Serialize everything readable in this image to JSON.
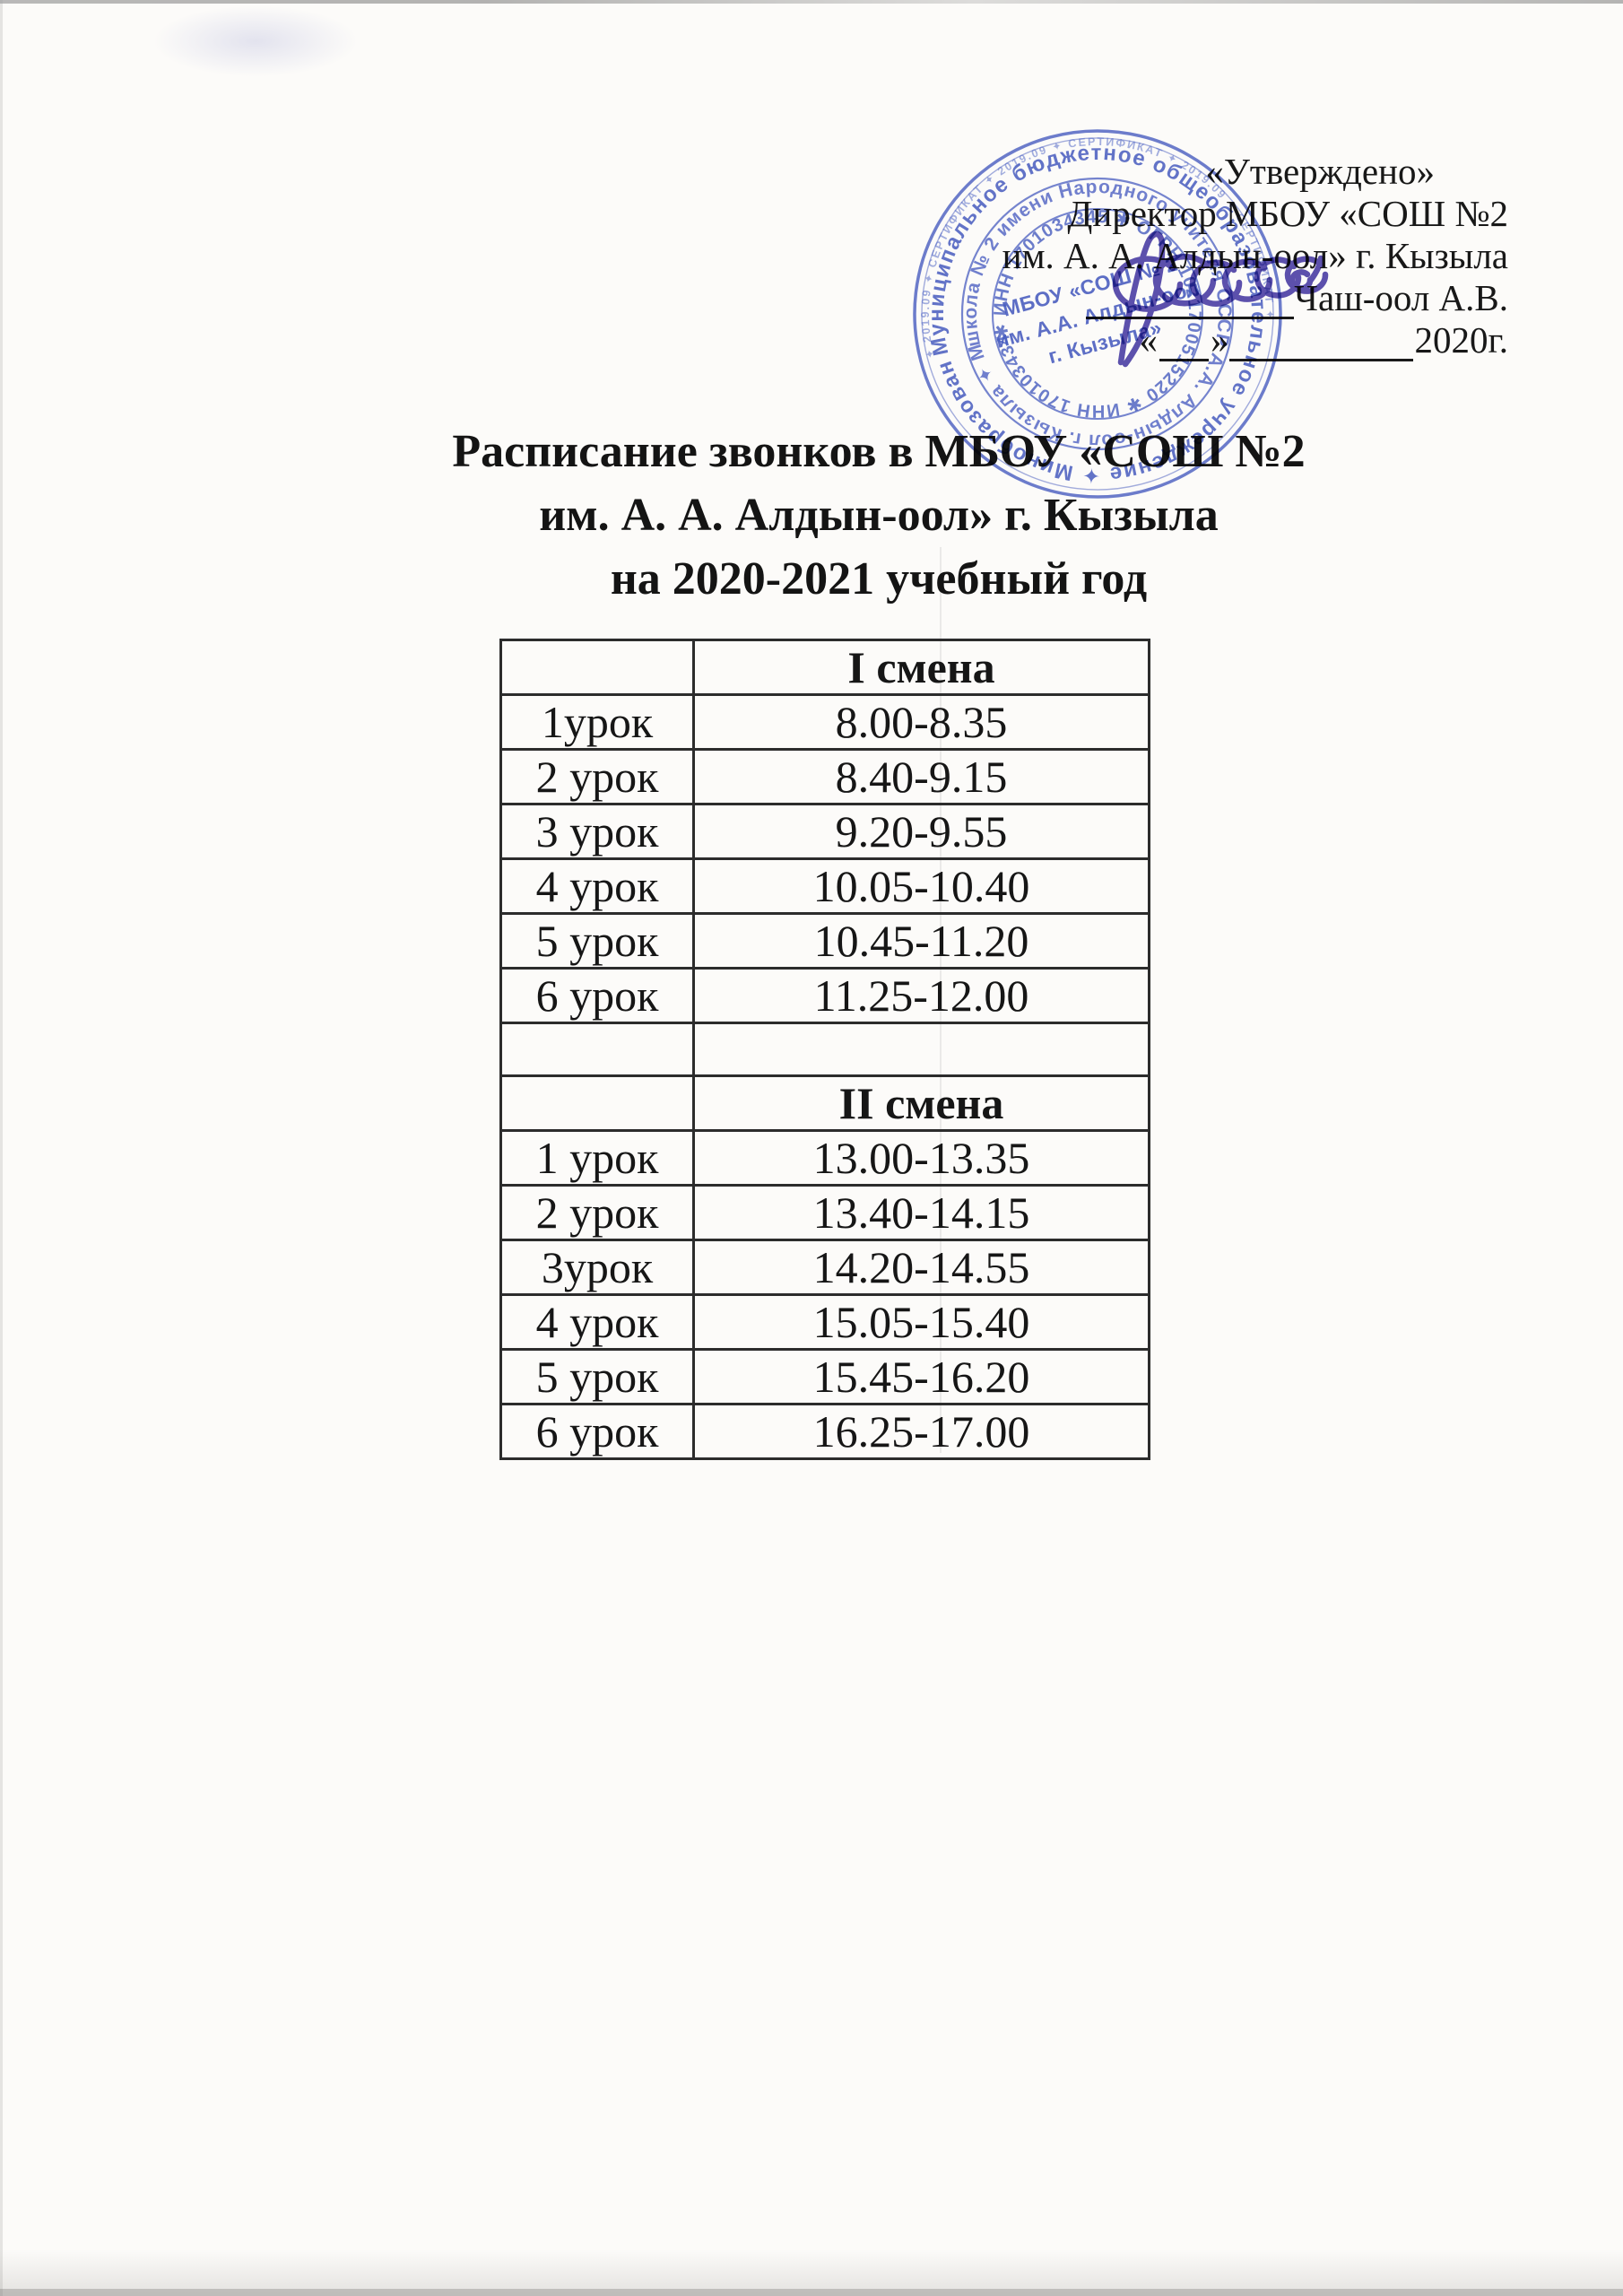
{
  "approval": {
    "approved_label": "«Утверждено»",
    "director_line": "Директор МБОУ «СОШ №2",
    "school_line": "им. А. А. Алдын-оол» г. Кызыла",
    "signer_name": "Чаш-оол А.В.",
    "date_quote_open": "«",
    "date_quote_close": "»",
    "date_year": "2020г."
  },
  "title": {
    "line1": "Расписание звонков в МБОУ «СОШ №2",
    "line2": "им. А. А. Алдын-оол» г. Кызыла",
    "line3": "на 2020-2021 учебный год"
  },
  "stamp": {
    "color": "#3950bf",
    "ring_certificate": "✦ 2019.09 ✦ СЕРТИФИКАТ ✦ 2019.09 ✦ СЕРТИФИКАТ ✦ 2019.09 ✦ СЕРТИФИКАТ ✦",
    "ring_outer": "Муниципальное бюджетное общеобразовательное учреждение ✦ Минобразования Республики Тыва ✦",
    "ring_middle": "школа № 2 имени Народного учителя СССР А.А. Алдын-оол г. Кызыла ✦ МБОУ «СОШ № 2» ✦",
    "ring_inner": "✱ ИНН 1701034345 ✱ ОГРН 1021700515220 ✱ ИНН 1701034345",
    "center_line1": "МБОУ «СОШ № 2",
    "center_line2": "им. А.А. Алдын-оол",
    "center_line3": "г. Кызыла»"
  },
  "schedule": {
    "shift1": {
      "header": "I смена",
      "rows": [
        {
          "lesson": "1урок",
          "time": "8.00-8.35"
        },
        {
          "lesson": "2 урок",
          "time": "8.40-9.15"
        },
        {
          "lesson": "3 урок",
          "time": "9.20-9.55"
        },
        {
          "lesson": "4 урок",
          "time": "10.05-10.40"
        },
        {
          "lesson": "5 урок",
          "time": "10.45-11.20"
        },
        {
          "lesson": "6 урок",
          "time": "11.25-12.00"
        }
      ]
    },
    "shift2": {
      "header": "II смена",
      "rows": [
        {
          "lesson": "1 урок",
          "time": "13.00-13.35"
        },
        {
          "lesson": "2 урок",
          "time": "13.40-14.15"
        },
        {
          "lesson": "3урок",
          "time": "14.20-14.55"
        },
        {
          "lesson": "4 урок",
          "time": "15.05-15.40"
        },
        {
          "lesson": "5 урок",
          "time": "15.45-16.20"
        },
        {
          "lesson": "6 урок",
          "time": "16.25-17.00"
        }
      ]
    }
  }
}
